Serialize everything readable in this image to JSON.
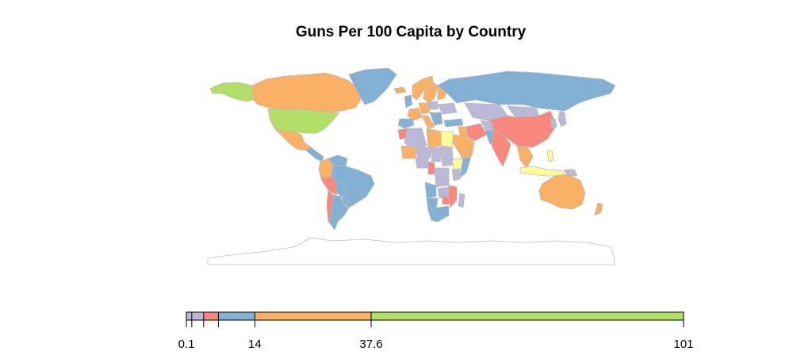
{
  "title": "Guns Per 100 Capita by Country",
  "colors": {
    "lavender": "#bcb8d8",
    "red": "#f8877e",
    "blue": "#82b1d5",
    "orange": "#fbb165",
    "green": "#b3de68",
    "yellow": "#fcfc99",
    "border": "#b9b9b9",
    "coast": "#bdbdbd"
  },
  "legend": {
    "breaks": [
      0.1,
      1.2,
      3.6,
      6.6,
      14,
      37.6,
      101
    ],
    "bin_colors": [
      "lavender",
      "lavender",
      "red",
      "blue",
      "orange",
      "green"
    ],
    "tick_labels": [
      {
        "value": 0.1,
        "label": "0.1"
      },
      {
        "value": 14,
        "label": "14"
      },
      {
        "value": 37.6,
        "label": "37.6"
      },
      {
        "value": 101,
        "label": "101"
      }
    ]
  },
  "regions": [
    {
      "name": "Alaska",
      "color": "green"
    },
    {
      "name": "Canada",
      "color": "orange"
    },
    {
      "name": "Greenland",
      "color": "blue"
    },
    {
      "name": "United States",
      "color": "green"
    },
    {
      "name": "Mexico",
      "color": "orange"
    },
    {
      "name": "Central America",
      "color": "blue"
    },
    {
      "name": "Colombia",
      "color": "orange"
    },
    {
      "name": "Venezuela",
      "color": "blue"
    },
    {
      "name": "Brazil",
      "color": "blue"
    },
    {
      "name": "Peru",
      "color": "red"
    },
    {
      "name": "Bolivia",
      "color": "blue"
    },
    {
      "name": "Paraguay",
      "color": "blue"
    },
    {
      "name": "Argentina",
      "color": "blue"
    },
    {
      "name": "Chile",
      "color": "red"
    },
    {
      "name": "Iceland",
      "color": "orange"
    },
    {
      "name": "Norway",
      "color": "orange"
    },
    {
      "name": "Sweden",
      "color": "orange"
    },
    {
      "name": "Finland",
      "color": "orange"
    },
    {
      "name": "United Kingdom",
      "color": "blue"
    },
    {
      "name": "Spain",
      "color": "blue"
    },
    {
      "name": "France",
      "color": "orange"
    },
    {
      "name": "Germany",
      "color": "orange"
    },
    {
      "name": "Italy",
      "color": "orange"
    },
    {
      "name": "Poland",
      "color": "lavender"
    },
    {
      "name": "Balkans",
      "color": "blue"
    },
    {
      "name": "Ukraine",
      "color": "lavender"
    },
    {
      "name": "Russia",
      "color": "blue"
    },
    {
      "name": "Kazakhstan",
      "color": "lavender"
    },
    {
      "name": "Mongolia",
      "color": "lavender"
    },
    {
      "name": "China",
      "color": "red"
    },
    {
      "name": "Korea",
      "color": "lavender"
    },
    {
      "name": "Japan",
      "color": "lavender"
    },
    {
      "name": "Turkey",
      "color": "blue"
    },
    {
      "name": "Iran",
      "color": "red"
    },
    {
      "name": "Afghanistan",
      "color": "lavender"
    },
    {
      "name": "Pakistan",
      "color": "blue"
    },
    {
      "name": "India",
      "color": "red"
    },
    {
      "name": "Saudi Arabia",
      "color": "orange"
    },
    {
      "name": "Yemen",
      "color": "orange"
    },
    {
      "name": "Iraq",
      "color": "orange"
    },
    {
      "name": "Mainland Southeast Asia",
      "color": "orange"
    },
    {
      "name": "Indonesia",
      "color": "yellow"
    },
    {
      "name": "Philippines",
      "color": "yellow"
    },
    {
      "name": "Papua New Guinea",
      "color": "lavender"
    },
    {
      "name": "Australia",
      "color": "orange"
    },
    {
      "name": "New Zealand",
      "color": "orange"
    },
    {
      "name": "Morocco",
      "color": "red"
    },
    {
      "name": "Algeria",
      "color": "lavender"
    },
    {
      "name": "Libya",
      "color": "orange"
    },
    {
      "name": "Egypt",
      "color": "yellow"
    },
    {
      "name": "Mali",
      "color": "orange"
    },
    {
      "name": "Niger",
      "color": "lavender"
    },
    {
      "name": "Chad",
      "color": "lavender"
    },
    {
      "name": "Sudan",
      "color": "lavender"
    },
    {
      "name": "Ethiopia",
      "color": "yellow"
    },
    {
      "name": "Somalia",
      "color": "blue"
    },
    {
      "name": "Kenya",
      "color": "lavender"
    },
    {
      "name": "Nigeria",
      "color": "lavender"
    },
    {
      "name": "Cameroon",
      "color": "red"
    },
    {
      "name": "Congo DR",
      "color": "lavender"
    },
    {
      "name": "Angola",
      "color": "blue"
    },
    {
      "name": "Zambia",
      "color": "lavender"
    },
    {
      "name": "Zimbabwe",
      "color": "red"
    },
    {
      "name": "Mozambique",
      "color": "red"
    },
    {
      "name": "Namibia",
      "color": "blue"
    },
    {
      "name": "South Africa",
      "color": "blue"
    },
    {
      "name": "Madagascar",
      "color": "lavender"
    },
    {
      "name": "Antarctica",
      "color": "none"
    }
  ]
}
